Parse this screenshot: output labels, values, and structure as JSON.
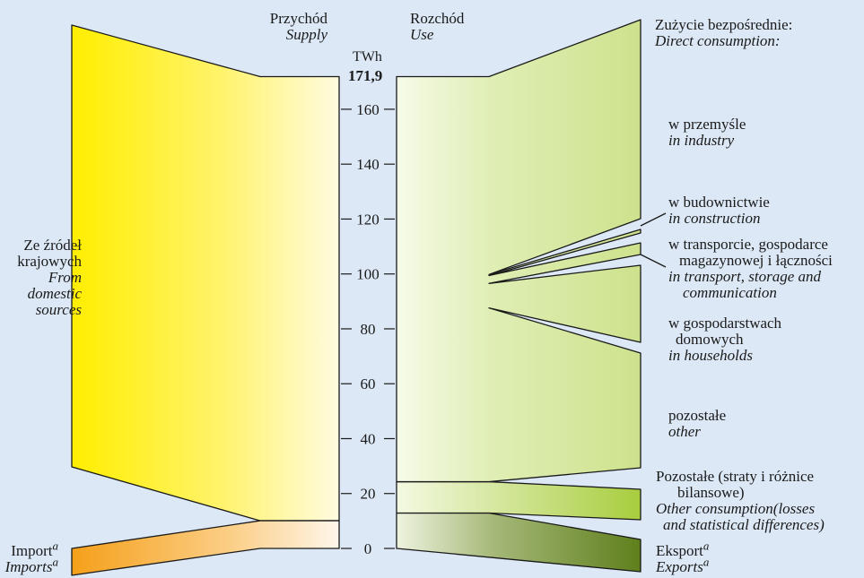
{
  "chart_data": {
    "type": "sankey",
    "unit": "TWh",
    "total_label": "171,9",
    "total": 171.9,
    "axis": {
      "ylim": [
        0,
        171.9
      ],
      "ticks": [
        0,
        20,
        40,
        60,
        80,
        100,
        120,
        140,
        160
      ]
    },
    "supply": {
      "title_pl": "Przychód",
      "title_en": "Supply",
      "flows": [
        {
          "label_pl": "Import",
          "label_en": "Imports",
          "sup": "a",
          "value": 10.1,
          "color": "#f5a31e"
        },
        {
          "label_pl": "Ze źródeł krajowych",
          "label_en": "From domestic sources",
          "value": 161.8,
          "color": "#fff000"
        }
      ],
      "domestic_pl_lines": [
        "Ze źródeł",
        "krajowych"
      ],
      "domestic_en_lines": [
        "From",
        "domestic",
        "sources"
      ]
    },
    "use": {
      "title_pl": "Rozchód",
      "title_en": "Use",
      "direct_header_pl": "Zużycie bezpośrednie:",
      "direct_header_en": "Direct consumption:",
      "flows": [
        {
          "key": "export",
          "label_pl": "Eksport",
          "label_en": "Exports",
          "sup": "a",
          "value": 12.9
        },
        {
          "key": "other_consumption",
          "label_pl_lines": [
            "Pozostałe (straty i różnice",
            "bilansowe)"
          ],
          "label_en_lines": [
            "Other consumption(losses",
            "and statistical differences)"
          ],
          "value": 11.4
        },
        {
          "key": "other",
          "label_pl": "pozostałe",
          "label_en": "other",
          "value": 41.7
        },
        {
          "key": "households",
          "label_pl_lines": [
            "w gospodarstwach",
            "domowych"
          ],
          "label_en": "in households",
          "value": 28.8
        },
        {
          "key": "transport",
          "label_pl_lines": [
            "w transporcie, gospodarce",
            "magazynowej i łączności"
          ],
          "label_en_lines": [
            "in transport, storage and",
            "communication"
          ],
          "value": 3.7
        },
        {
          "key": "construction",
          "label_pl": "w budownictwie",
          "label_en": "in construction",
          "value": 1.3
        },
        {
          "key": "industry",
          "label_pl": "w przemyśle",
          "label_en": "in industry",
          "value": 72.1
        }
      ]
    }
  }
}
